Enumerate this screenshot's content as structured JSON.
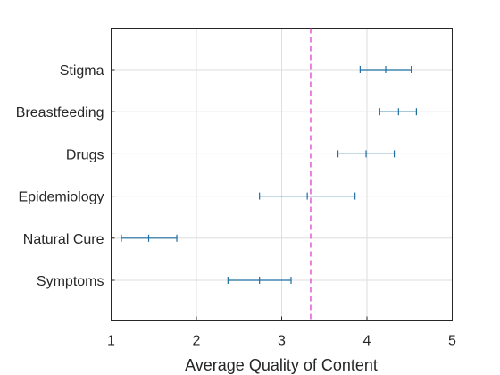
{
  "chart_data": {
    "type": "errorbar",
    "orientation": "horizontal",
    "categories": [
      "Stigma",
      "Breastfeeding",
      "Drugs",
      "Epidemiology",
      "Natural Cure",
      "Symptoms"
    ],
    "points": [
      {
        "category": "Stigma",
        "mean": 4.22,
        "low": 3.92,
        "high": 4.52
      },
      {
        "category": "Breastfeeding",
        "mean": 4.37,
        "low": 4.15,
        "high": 4.58
      },
      {
        "category": "Drugs",
        "mean": 3.99,
        "low": 3.66,
        "high": 4.32
      },
      {
        "category": "Epidemiology",
        "mean": 3.3,
        "low": 2.74,
        "high": 3.86
      },
      {
        "category": "Natural Cure",
        "mean": 1.44,
        "low": 1.12,
        "high": 1.77
      },
      {
        "category": "Symptoms",
        "mean": 2.74,
        "low": 2.37,
        "high": 3.11
      }
    ],
    "reference_line": {
      "x": 3.34,
      "style": "dashed",
      "color": "#e040c8"
    },
    "xlabel": "Average Quality of Content",
    "ylabel": "",
    "xlim": [
      1,
      5
    ],
    "xticks": [
      "1",
      "2",
      "3",
      "4",
      "5"
    ],
    "grid": true,
    "series_color": "#1f6fa0"
  }
}
